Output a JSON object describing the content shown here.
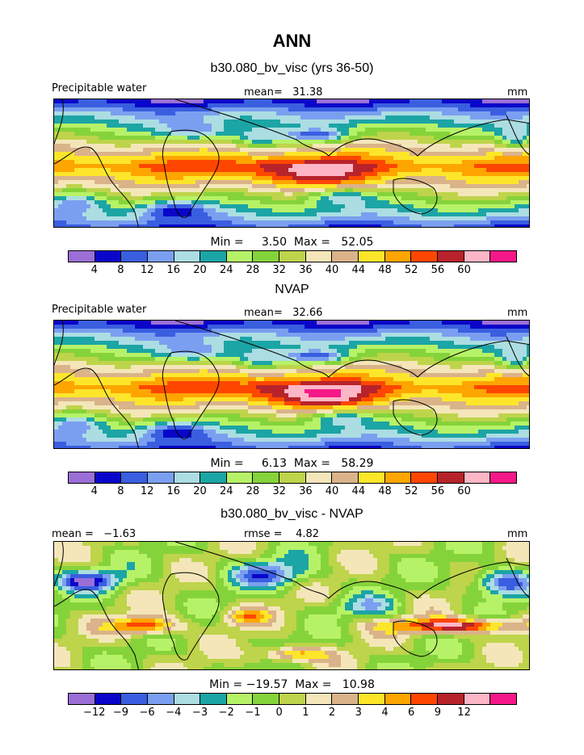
{
  "page_title": "ANN",
  "colors": {
    "ramp": [
      "#9b6fd6",
      "#0a06c9",
      "#3a5ee0",
      "#7b9ff0",
      "#abdde2",
      "#1ca5a5",
      "#b6f267",
      "#85d33a",
      "#bed44a",
      "#f4e6b9",
      "#dab38a",
      "#fde62a",
      "#fea500",
      "#fe4600",
      "#b8232b",
      "#fcb6c6",
      "#f51888"
    ],
    "coast": "#000000"
  },
  "chart_data": [
    {
      "type": "heatmap",
      "title": "b30.080_bv_visc (yrs 36-50)",
      "left_label": "Precipitable water",
      "stat_label": "mean=   31.38",
      "units": "mm",
      "min_max_text": "Min =     3.50  Max =   52.05",
      "min": 3.5,
      "max": 52.05,
      "mean": 31.38,
      "levels": [
        "4",
        "8",
        "12",
        "16",
        "20",
        "24",
        "28",
        "32",
        "36",
        "40",
        "44",
        "48",
        "52",
        "56",
        "60"
      ]
    },
    {
      "type": "heatmap",
      "title": "NVAP",
      "left_label": "Precipitable water",
      "stat_label": "mean=   32.66",
      "units": "mm",
      "min_max_text": "Min =     6.13  Max =   58.29",
      "min": 6.13,
      "max": 58.29,
      "mean": 32.66,
      "levels": [
        "4",
        "8",
        "12",
        "16",
        "20",
        "24",
        "28",
        "32",
        "36",
        "40",
        "44",
        "48",
        "52",
        "56",
        "60"
      ]
    },
    {
      "type": "heatmap",
      "title": "b30.080_bv_visc - NVAP",
      "left_label": "mean =   −1.63",
      "stat_label": "rmse =    4.82",
      "units": "mm",
      "min_max_text": "Min = −19.57  Max =   10.98",
      "min": -19.57,
      "max": 10.98,
      "mean": -1.63,
      "rmse": 4.82,
      "levels": [
        "−12",
        "−9",
        "−6",
        "−4",
        "−3",
        "−2",
        "−1",
        "0",
        "1",
        "2",
        "3",
        "4",
        "6",
        "9",
        "12"
      ]
    }
  ]
}
